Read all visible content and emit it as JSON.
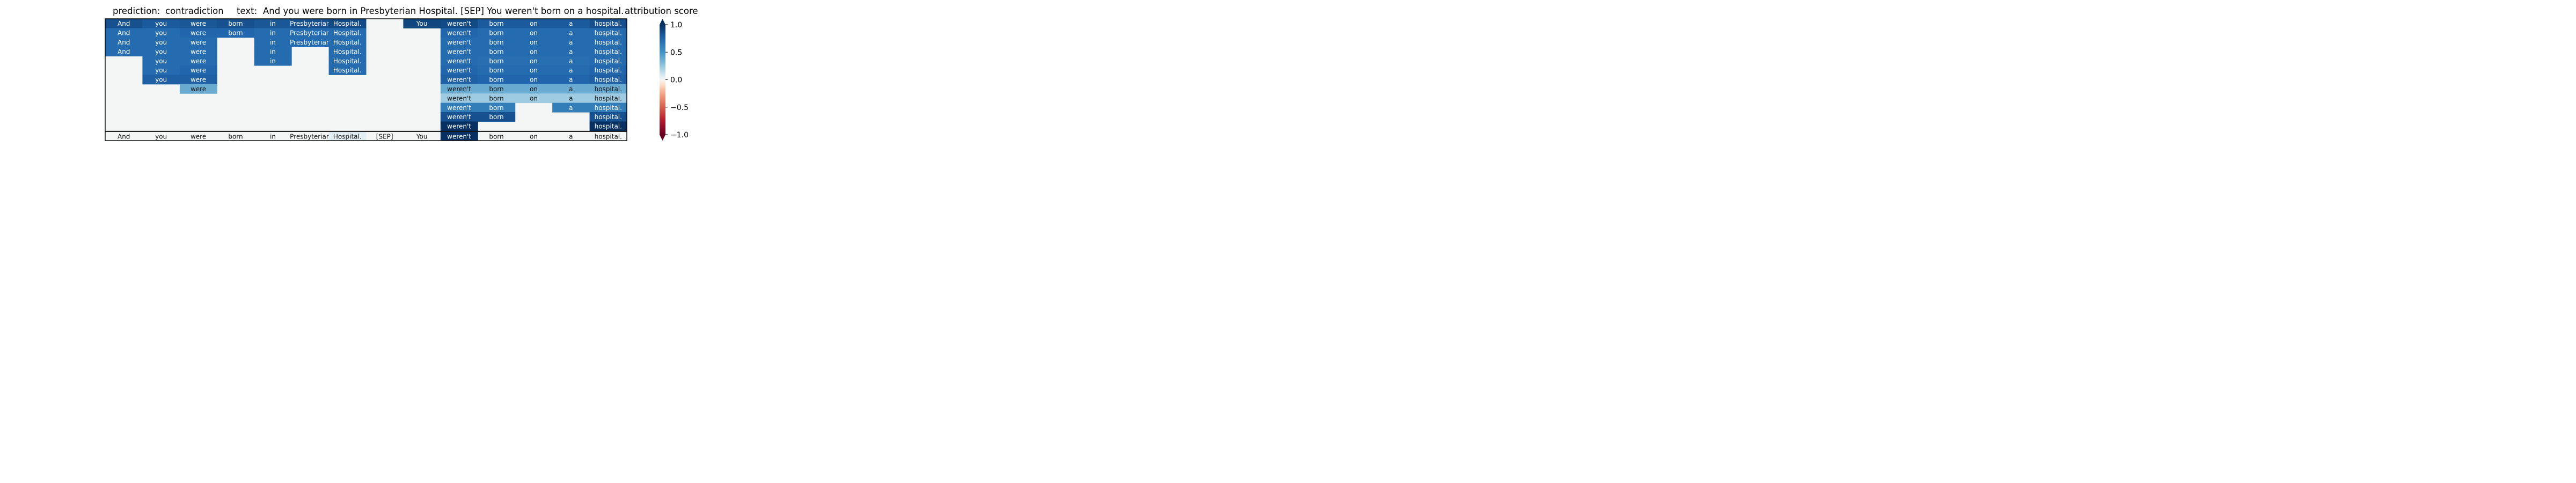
{
  "header": {
    "prediction_label": "prediction:",
    "prediction_value": "contradiction",
    "text_label": "text:",
    "text_value": "And you were born in Presbyterian Hospital. [SEP] You weren't born on a hospital.",
    "score_label": "attribution score"
  },
  "chart_data": {
    "type": "heatmap",
    "title": "",
    "tokens": [
      "And",
      "you",
      "were",
      "born",
      "in",
      "Presbyterian",
      "Hospital.",
      "[SEP]",
      "You",
      "weren't",
      "born",
      "on",
      "a",
      "hospital."
    ],
    "rows": [
      [
        0.85,
        0.8,
        0.82,
        0.85,
        0.82,
        0.85,
        0.88,
        null,
        0.9,
        0.88,
        0.8,
        0.8,
        0.8,
        0.85
      ],
      [
        0.72,
        0.72,
        0.75,
        0.75,
        0.72,
        0.72,
        0.72,
        null,
        null,
        0.75,
        0.72,
        0.72,
        0.72,
        0.72
      ],
      [
        0.72,
        0.72,
        0.72,
        null,
        0.72,
        0.72,
        0.72,
        null,
        null,
        0.72,
        0.72,
        0.72,
        0.72,
        0.72
      ],
      [
        0.72,
        0.72,
        0.72,
        null,
        0.72,
        null,
        0.72,
        null,
        null,
        0.72,
        0.72,
        0.72,
        0.72,
        0.72
      ],
      [
        null,
        0.72,
        0.72,
        null,
        0.72,
        null,
        0.72,
        null,
        null,
        0.72,
        0.7,
        0.7,
        0.7,
        0.72
      ],
      [
        null,
        0.72,
        0.75,
        null,
        null,
        null,
        0.72,
        null,
        null,
        0.75,
        0.72,
        0.72,
        0.72,
        0.75
      ],
      [
        null,
        0.78,
        0.78,
        null,
        null,
        null,
        null,
        null,
        null,
        0.78,
        0.75,
        0.75,
        0.75,
        0.78
      ],
      [
        null,
        null,
        0.38,
        null,
        null,
        null,
        null,
        null,
        null,
        0.38,
        0.38,
        0.38,
        0.38,
        0.38
      ],
      [
        null,
        null,
        null,
        null,
        null,
        null,
        null,
        null,
        null,
        0.22,
        0.22,
        0.22,
        0.22,
        0.22
      ],
      [
        null,
        null,
        null,
        null,
        null,
        null,
        null,
        null,
        null,
        0.62,
        0.62,
        null,
        0.62,
        0.62
      ],
      [
        null,
        null,
        null,
        null,
        null,
        null,
        null,
        null,
        null,
        0.85,
        0.85,
        null,
        null,
        0.85
      ],
      [
        null,
        null,
        null,
        null,
        null,
        null,
        null,
        null,
        null,
        1.0,
        null,
        null,
        null,
        1.0
      ]
    ],
    "bottom_row": [
      0.0,
      0.0,
      0.0,
      0.0,
      0.0,
      0.0,
      0.05,
      0.0,
      0.0,
      1.0,
      0.0,
      0.0,
      0.0,
      0.0
    ],
    "colorbar": {
      "label": "",
      "range": [
        -1.0,
        1.0
      ],
      "ticks": [
        "1.0",
        "0.5",
        "0.0",
        "−0.5",
        "−1.0"
      ],
      "tick_values": [
        1.0,
        0.5,
        0.0,
        -0.5,
        -1.0
      ],
      "colormap": "RdBu",
      "extend": "both"
    },
    "empty_color": "#f4f6f6"
  }
}
